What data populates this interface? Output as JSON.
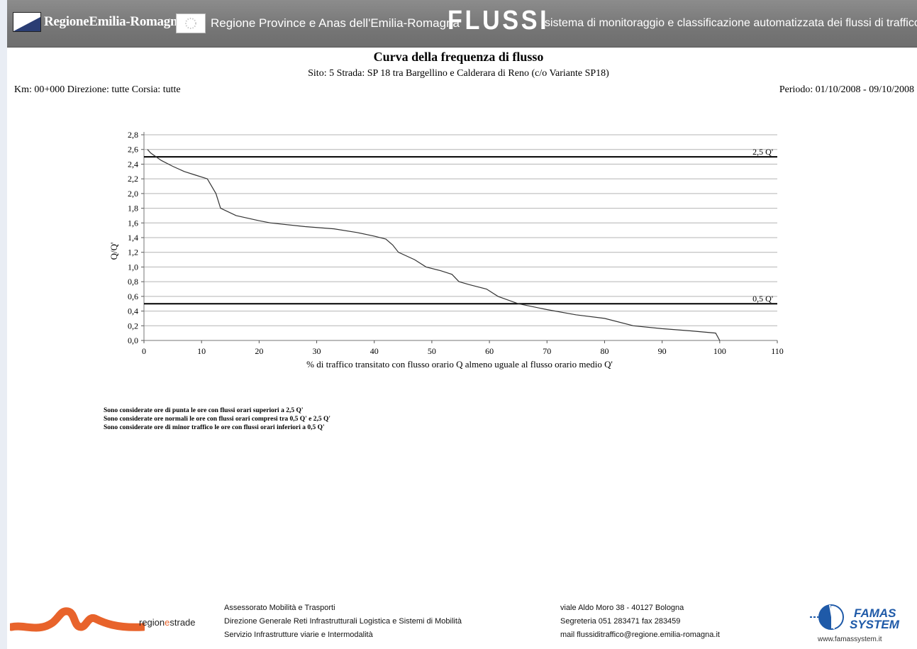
{
  "header": {
    "logo_text": "RegioneEmilia-Romagna",
    "subtitle": "Regione Province e Anas dell'Emilia-Romagna",
    "brand": "FLUSSI",
    "tagline": "sistema di monitoraggio e classificazione automatizzata dei flussi di traffico"
  },
  "report": {
    "title": "Curva della frequenza di flusso",
    "subtitle": "Sito: 5 Strada: SP 18 tra Bargellino e Calderara di Reno (c/o Variante SP18)",
    "location": "Km: 00+000 Direzione: tutte Corsia: tutte",
    "period": "Periodo: 01/10/2008 - 09/10/2008"
  },
  "chart_data": {
    "type": "line",
    "title": "Curva della frequenza di flusso",
    "xlabel": "% di traffico transitato con flusso orario Q almeno uguale al flusso orario medio Q'",
    "ylabel": "Q/Q'",
    "xlim": [
      0,
      110
    ],
    "ylim": [
      0,
      2.8
    ],
    "x_ticks": [
      "0",
      "10",
      "20",
      "30",
      "40",
      "50",
      "60",
      "70",
      "80",
      "90",
      "100",
      "110"
    ],
    "y_ticks": [
      "0,0",
      "0,2",
      "0,4",
      "0,6",
      "0,8",
      "1,0",
      "1,2",
      "1,4",
      "1,6",
      "1,8",
      "2,0",
      "2,2",
      "2,4",
      "2,6",
      "2,8"
    ],
    "grid": true,
    "reference_lines": [
      {
        "y": 2.5,
        "label": "2,5 Q'"
      },
      {
        "y": 0.5,
        "label": "0,5 Q'"
      }
    ],
    "series": [
      {
        "x": [
          0.6,
          1.2,
          3,
          5,
          7,
          9,
          11,
          12.5,
          13.3,
          16,
          20,
          22,
          28,
          33,
          37,
          40,
          42,
          43.2,
          44.2,
          47,
          49,
          51.5,
          53.5,
          54.7,
          56.5,
          59.5,
          61.5,
          65,
          70,
          75,
          80,
          85,
          90,
          95,
          99.3,
          100
        ],
        "y": [
          2.6,
          2.55,
          2.45,
          2.37,
          2.3,
          2.25,
          2.2,
          2.0,
          1.8,
          1.7,
          1.63,
          1.6,
          1.55,
          1.52,
          1.47,
          1.42,
          1.38,
          1.3,
          1.2,
          1.1,
          1.0,
          0.95,
          0.9,
          0.8,
          0.76,
          0.7,
          0.6,
          0.5,
          0.42,
          0.35,
          0.3,
          0.2,
          0.16,
          0.13,
          0.1,
          0.0
        ]
      }
    ]
  },
  "notes": [
    "Sono considerate ore di punta le ore con flussi orari superiori a 2,5 Q'",
    "Sono considerate ore normali le ore con flussi orari compresi tra 0,5 Q' e 2,5 Q'",
    "Sono considerate ore di minor traffico le ore con flussi orari inferiori a 0,5 Q'"
  ],
  "footer": {
    "brand_a": "region",
    "brand_b": "e",
    "brand_c": "strade",
    "col1": [
      "Assessorato Mobilità e Trasporti",
      "Direzione Generale Reti Infrastrutturali Logistica e Sistemi di Mobilità",
      "Servizio Infrastrutture viarie e Intermodalità"
    ],
    "col2": [
      "viale Aldo Moro 38 - 40127 Bologna",
      "Segreteria 051 283471  fax 283459",
      "mail flussiditraffico@regione.emilia-romagna.it"
    ],
    "famas_line1": "FAMAS",
    "famas_line2": "SYSTEM",
    "famas_url": "www.famassystem.it",
    "colors": {
      "orange": "#e8632b",
      "blue": "#1f5aa8"
    }
  }
}
